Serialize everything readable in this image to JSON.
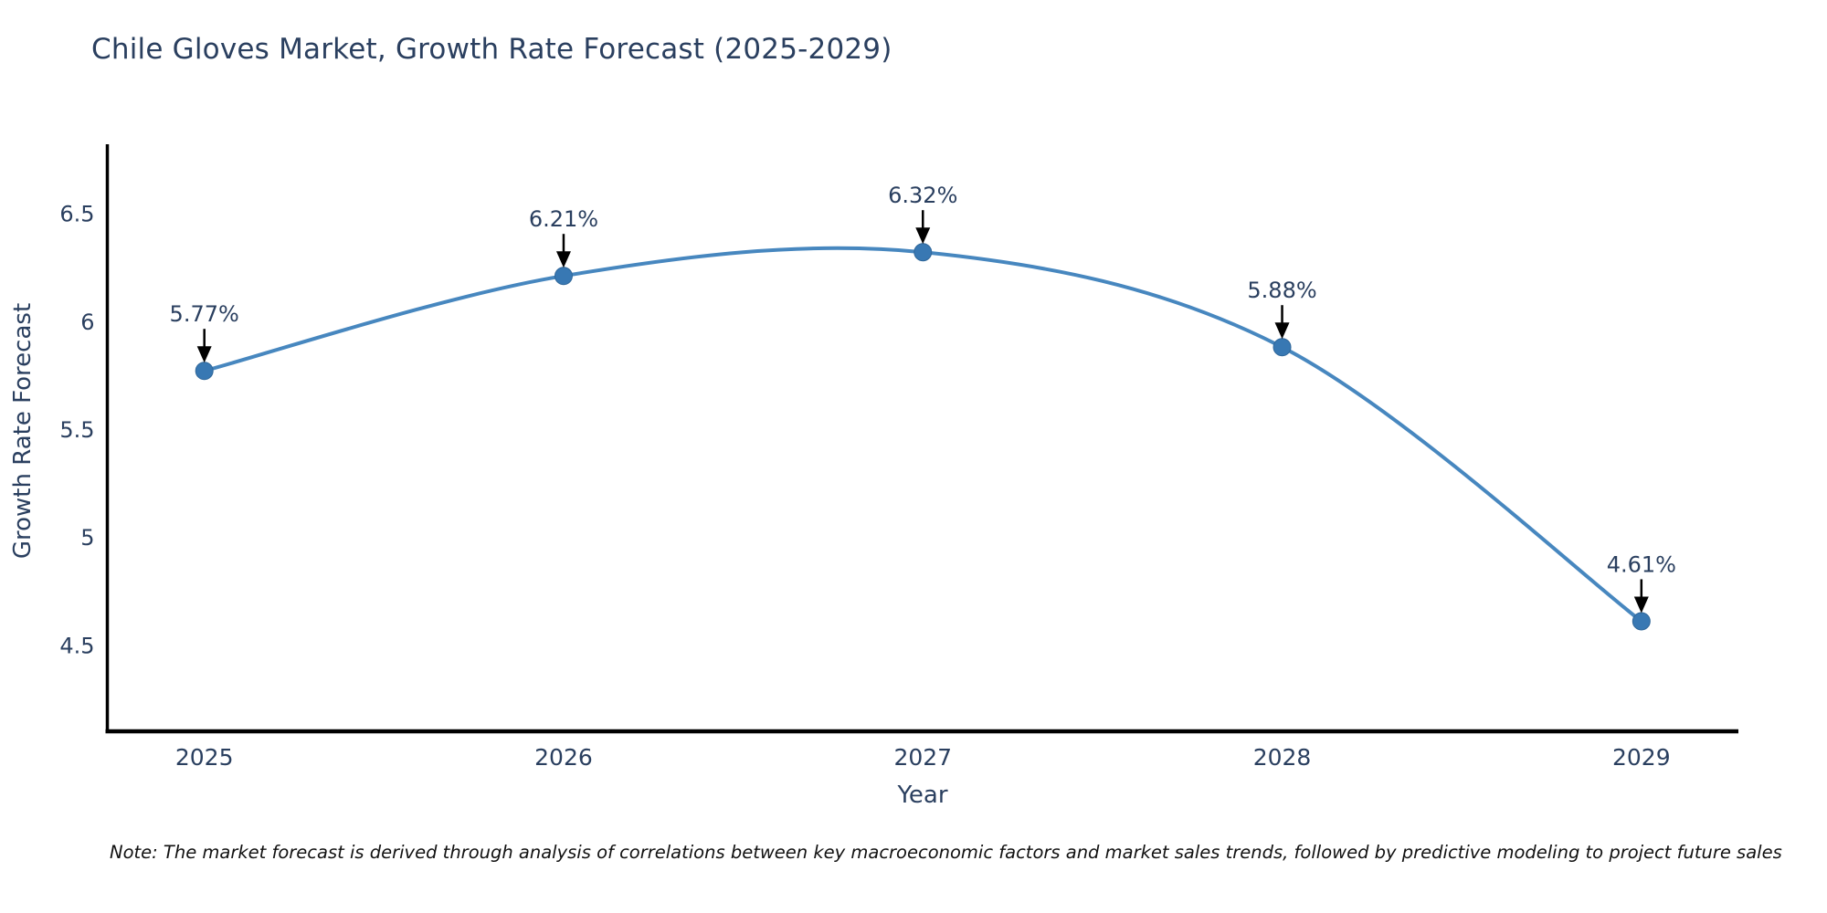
{
  "chart_data": {
    "type": "line",
    "title": "Chile Gloves Market, Growth Rate Forecast (2025-2029)",
    "xlabel": "Year",
    "ylabel": "Growth Rate Forecast",
    "x": [
      2025,
      2026,
      2027,
      2028,
      2029
    ],
    "values": [
      5.77,
      6.21,
      6.32,
      5.88,
      4.61
    ],
    "point_labels": [
      "5.77%",
      "6.21%",
      "6.32%",
      "5.88%",
      "4.61%"
    ],
    "xtick_labels": [
      "2025",
      "2026",
      "2027",
      "2028",
      "2029"
    ],
    "yticks": [
      4.5,
      5,
      5.5,
      6,
      6.5
    ],
    "ytick_labels": [
      "4.5",
      "5",
      "5.5",
      "6",
      "6.5"
    ],
    "xlim": [
      2024.73,
      2029.27
    ],
    "ylim": [
      4.1,
      6.82
    ],
    "grid": false,
    "legend_position": "none",
    "line_color": "#4787bf",
    "marker_color": "#3878b3",
    "marker_edge_color": "#2f6699",
    "axis_color": "#000000",
    "text_color": "#2a3f5f",
    "annotation_arrow_color": "#000000"
  },
  "note": {
    "text": "Note: The market forecast is derived through analysis of correlations between key macroeconomic factors and market sales trends, followed by predictive modeling to project future sales"
  }
}
